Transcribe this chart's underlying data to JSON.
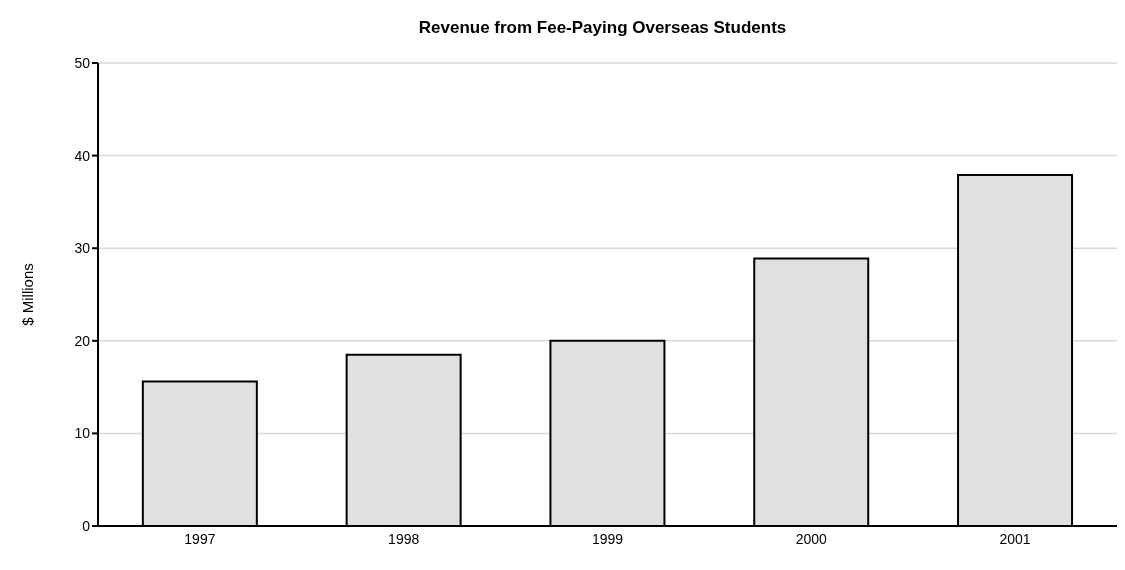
{
  "chart_data": {
    "type": "bar",
    "title": "Revenue from Fee-Paying Overseas Students",
    "ylabel": "$ Millions",
    "categories": [
      "1997",
      "1998",
      "1999",
      "2000",
      "2001"
    ],
    "values": [
      15.6,
      18.5,
      20,
      28.9,
      37.9
    ],
    "color": "#e0e0e0",
    "ylim": [
      0,
      50
    ],
    "yticks": [
      0,
      10,
      20,
      30,
      40,
      50
    ],
    "grid": "y"
  }
}
